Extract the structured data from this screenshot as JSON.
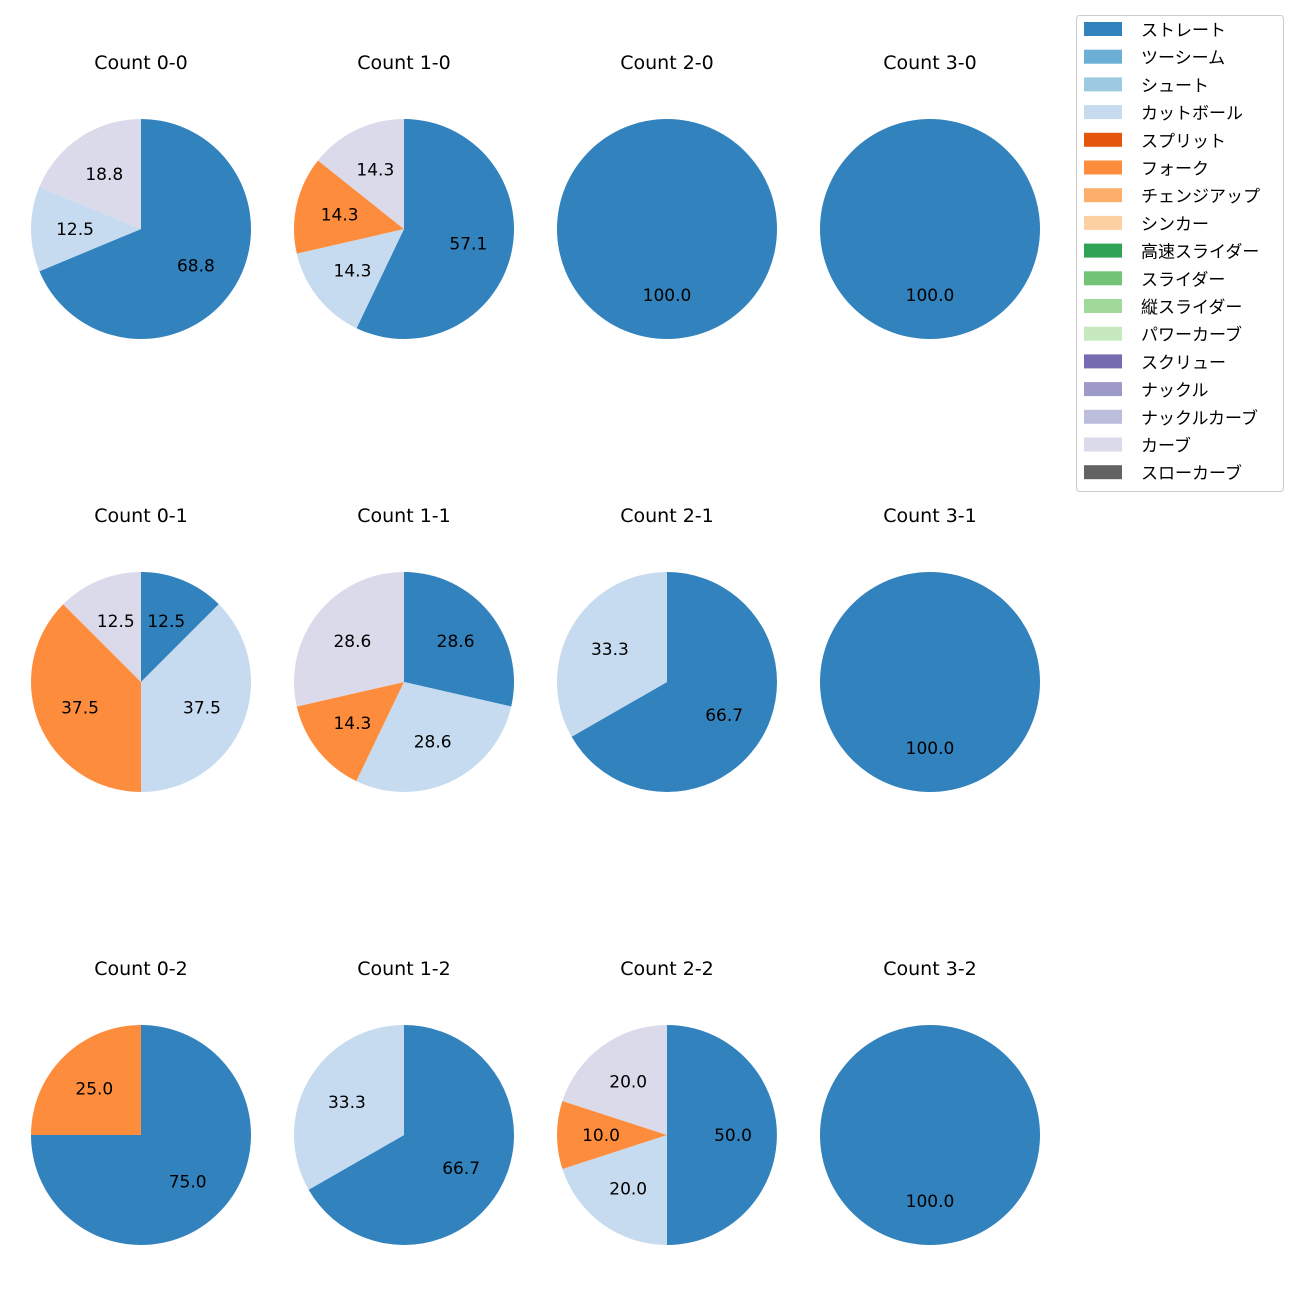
{
  "chart_data": {
    "type": "pie",
    "legend": {
      "placement": "top-right",
      "entries": [
        {
          "name": "ストレート",
          "color": "#3182bd"
        },
        {
          "name": "ツーシーム",
          "color": "#6baed6"
        },
        {
          "name": "シュート",
          "color": "#9ecae1"
        },
        {
          "name": "カットボール",
          "color": "#c6dbef"
        },
        {
          "name": "スプリット",
          "color": "#e6550d"
        },
        {
          "name": "フォーク",
          "color": "#fd8d3c"
        },
        {
          "name": "チェンジアップ",
          "color": "#fdae6b"
        },
        {
          "name": "シンカー",
          "color": "#fdd0a2"
        },
        {
          "name": "高速スライダー",
          "color": "#31a354"
        },
        {
          "name": "スライダー",
          "color": "#74c476"
        },
        {
          "name": "縦スライダー",
          "color": "#a1d99b"
        },
        {
          "name": "パワーカーブ",
          "color": "#c7e9c0"
        },
        {
          "name": "スクリュー",
          "color": "#756bb1"
        },
        {
          "name": "ナックル",
          "color": "#9e9ac8"
        },
        {
          "name": "ナックルカーブ",
          "color": "#bcbddc"
        },
        {
          "name": "カーブ",
          "color": "#dadaeb"
        },
        {
          "name": "スローカーブ",
          "color": "#636363"
        }
      ]
    },
    "charts": [
      {
        "title": "Count 0-0",
        "slices": [
          {
            "pitch": "ストレート",
            "value": 68.8,
            "label": "68.8"
          },
          {
            "pitch": "カットボール",
            "value": 12.5,
            "label": "12.5"
          },
          {
            "pitch": "カーブ",
            "value": 18.8,
            "label": "18.8"
          }
        ]
      },
      {
        "title": "Count 1-0",
        "slices": [
          {
            "pitch": "ストレート",
            "value": 57.1,
            "label": "57.1"
          },
          {
            "pitch": "カットボール",
            "value": 14.3,
            "label": "14.3"
          },
          {
            "pitch": "フォーク",
            "value": 14.3,
            "label": "14.3"
          },
          {
            "pitch": "カーブ",
            "value": 14.3,
            "label": "14.3"
          }
        ]
      },
      {
        "title": "Count 2-0",
        "slices": [
          {
            "pitch": "ストレート",
            "value": 100.0,
            "label": "100.0"
          }
        ]
      },
      {
        "title": "Count 3-0",
        "slices": [
          {
            "pitch": "ストレート",
            "value": 100.0,
            "label": "100.0"
          }
        ]
      },
      {
        "title": "Count 0-1",
        "slices": [
          {
            "pitch": "ストレート",
            "value": 12.5,
            "label": "12.5"
          },
          {
            "pitch": "カットボール",
            "value": 37.5,
            "label": "37.5"
          },
          {
            "pitch": "フォーク",
            "value": 37.5,
            "label": "37.5"
          },
          {
            "pitch": "カーブ",
            "value": 12.5,
            "label": "12.5"
          }
        ]
      },
      {
        "title": "Count 1-1",
        "slices": [
          {
            "pitch": "ストレート",
            "value": 28.6,
            "label": "28.6"
          },
          {
            "pitch": "カットボール",
            "value": 28.6,
            "label": "28.6"
          },
          {
            "pitch": "フォーク",
            "value": 14.3,
            "label": "14.3"
          },
          {
            "pitch": "カーブ",
            "value": 28.6,
            "label": "28.6"
          }
        ]
      },
      {
        "title": "Count 2-1",
        "slices": [
          {
            "pitch": "ストレート",
            "value": 66.7,
            "label": "66.7"
          },
          {
            "pitch": "カットボール",
            "value": 33.3,
            "label": "33.3"
          }
        ]
      },
      {
        "title": "Count 3-1",
        "slices": [
          {
            "pitch": "ストレート",
            "value": 100.0,
            "label": "100.0"
          }
        ]
      },
      {
        "title": "Count 0-2",
        "slices": [
          {
            "pitch": "ストレート",
            "value": 75.0,
            "label": "75.0"
          },
          {
            "pitch": "フォーク",
            "value": 25.0,
            "label": "25.0"
          }
        ]
      },
      {
        "title": "Count 1-2",
        "slices": [
          {
            "pitch": "ストレート",
            "value": 66.7,
            "label": "66.7"
          },
          {
            "pitch": "カットボール",
            "value": 33.3,
            "label": "33.3"
          }
        ]
      },
      {
        "title": "Count 2-2",
        "slices": [
          {
            "pitch": "ストレート",
            "value": 50.0,
            "label": "50.0"
          },
          {
            "pitch": "カットボール",
            "value": 20.0,
            "label": "20.0"
          },
          {
            "pitch": "フォーク",
            "value": 10.0,
            "label": "10.0"
          },
          {
            "pitch": "カーブ",
            "value": 20.0,
            "label": "20.0"
          }
        ]
      },
      {
        "title": "Count 3-2",
        "slices": [
          {
            "pitch": "ストレート",
            "value": 100.0,
            "label": "100.0"
          }
        ]
      }
    ]
  }
}
